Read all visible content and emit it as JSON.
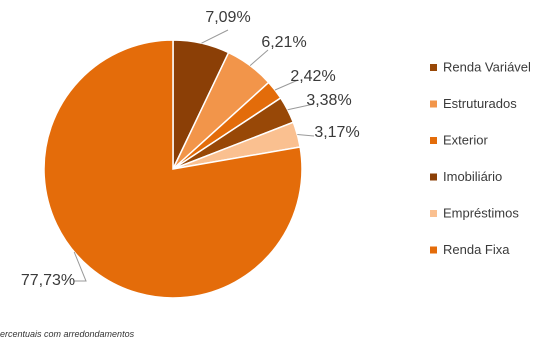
{
  "chart_data": {
    "type": "pie",
    "title": "",
    "start_angle_deg": 0,
    "direction": "clockwise",
    "legend_placement": "right",
    "slices": [
      {
        "name": "Imobiliário",
        "label": "7,09%",
        "value": 7.09,
        "color": "#8B3F06"
      },
      {
        "name": "Estruturados",
        "label": "6,21%",
        "value": 6.21,
        "color": "#F2954A"
      },
      {
        "name": "Exterior",
        "label": "2,42%",
        "value": 2.42,
        "color": "#E36C0A"
      },
      {
        "name": "Renda Variável",
        "label": "3,38%",
        "value": 3.38,
        "color": "#984807"
      },
      {
        "name": "Empréstimos",
        "label": "3,17%",
        "value": 3.17,
        "color": "#FAC090"
      },
      {
        "name": "Renda Fixa",
        "label": "77,73%",
        "value": 77.73,
        "color": "#E46C0A"
      }
    ],
    "legend": [
      {
        "name": "Renda Variável",
        "color": "#984807"
      },
      {
        "name": "Estruturados",
        "color": "#F2954A"
      },
      {
        "name": "Exterior",
        "color": "#E36C0A"
      },
      {
        "name": "Imobiliário",
        "color": "#8B3F06"
      },
      {
        "name": "Empréstimos",
        "color": "#FAC090"
      },
      {
        "name": "Renda Fixa",
        "color": "#E46C0A"
      }
    ]
  },
  "footnote": "ercentuais com arredondamentos"
}
